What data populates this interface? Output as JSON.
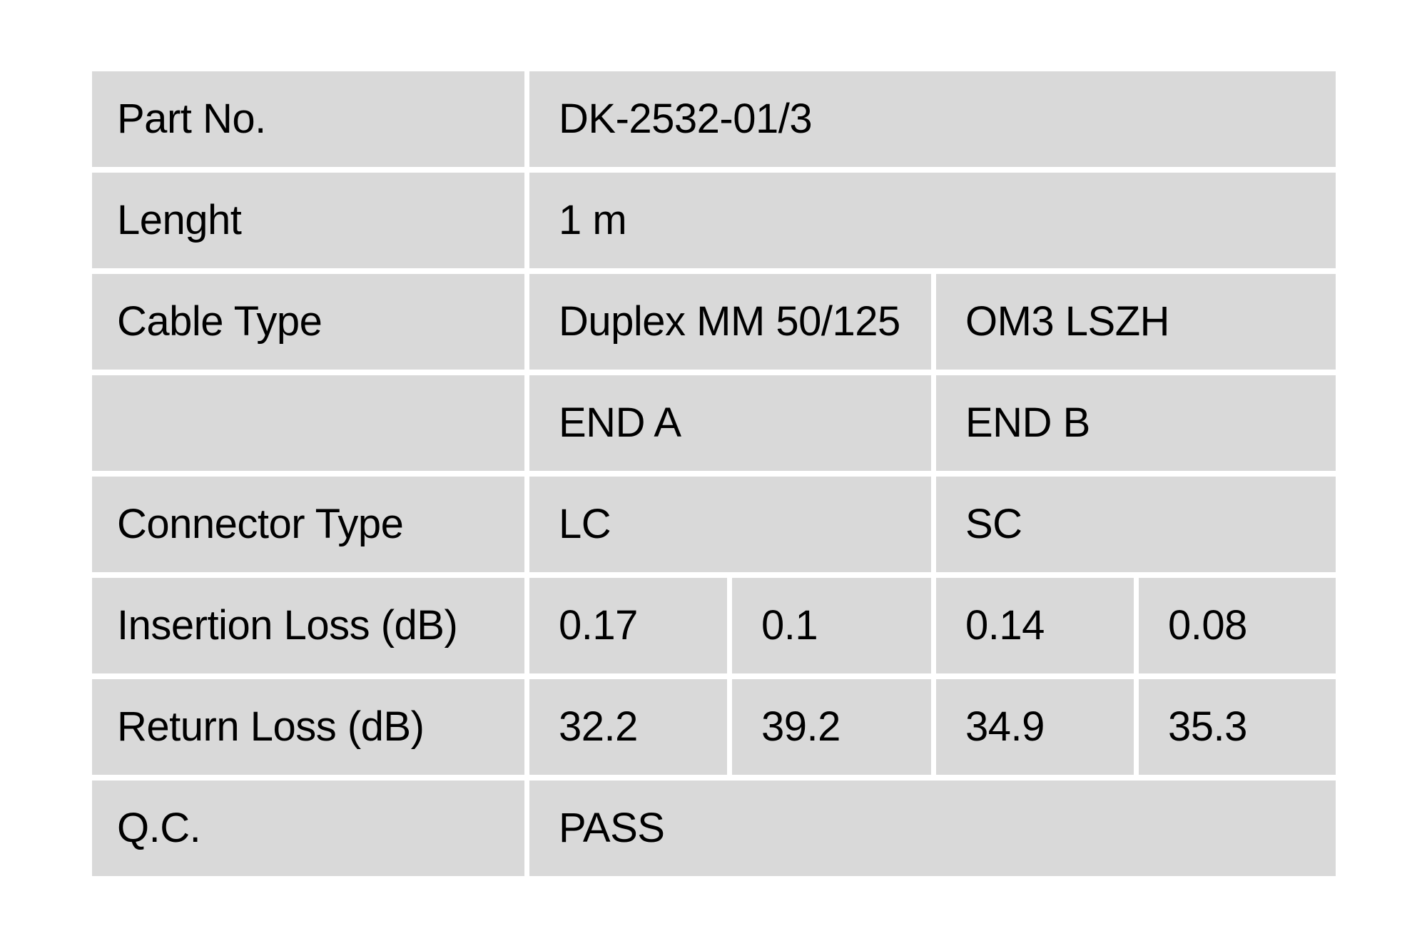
{
  "colors": {
    "cell_background": "#d9d9d9",
    "page_background": "#ffffff",
    "text": "#000000"
  },
  "table": {
    "rows": [
      {
        "label": "Part No.",
        "cells": [
          {
            "text": "DK-2532-01/3"
          }
        ]
      },
      {
        "label": "Lenght",
        "cells": [
          {
            "text": "1 m"
          }
        ]
      },
      {
        "label": "Cable Type",
        "cells": [
          {
            "text": "Duplex MM 50/125"
          },
          {
            "text": "OM3 LSZH"
          }
        ]
      },
      {
        "label": "",
        "cells": [
          {
            "text": "END A"
          },
          {
            "text": "END B"
          }
        ]
      },
      {
        "label": "Connector Type",
        "cells": [
          {
            "text": "LC"
          },
          {
            "text": "SC"
          }
        ]
      },
      {
        "label": "Insertion Loss (dB)",
        "cells": [
          {
            "text": "0.17"
          },
          {
            "text": "0.1"
          },
          {
            "text": "0.14"
          },
          {
            "text": "0.08"
          }
        ]
      },
      {
        "label": "Return Loss (dB)",
        "cells": [
          {
            "text": "32.2"
          },
          {
            "text": "39.2"
          },
          {
            "text": "34.9"
          },
          {
            "text": "35.3"
          }
        ]
      },
      {
        "label": "Q.C.",
        "cells": [
          {
            "text": "PASS"
          }
        ]
      }
    ]
  }
}
